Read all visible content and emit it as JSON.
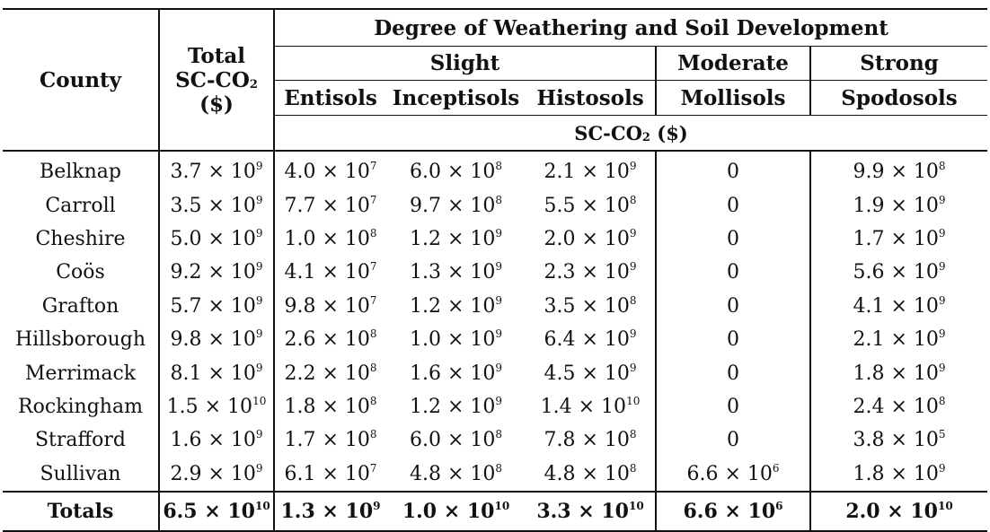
{
  "header": {
    "county": "County",
    "total_line1": "Total",
    "total_line2_main": "SC-CO",
    "total_line2_sub": "2",
    "total_line3": "($)",
    "group_title": "Degree of Weathering and Soil Development",
    "groups": [
      "Slight",
      "Moderate",
      "Strong"
    ],
    "orders": [
      "Entisols",
      "Inceptisols",
      "Histosols",
      "Mollisols",
      "Spodosols"
    ],
    "unit_main": "SC-CO",
    "unit_sub": "2",
    "unit_suffix": " ($)"
  },
  "rows": [
    {
      "county": "Belknap",
      "values": [
        [
          "3.7",
          "9"
        ],
        [
          "4.0",
          "7"
        ],
        [
          "6.0",
          "8"
        ],
        [
          "2.1",
          "9"
        ],
        [
          "0",
          ""
        ],
        [
          "9.9",
          "8"
        ]
      ]
    },
    {
      "county": "Carroll",
      "values": [
        [
          "3.5",
          "9"
        ],
        [
          "7.7",
          "7"
        ],
        [
          "9.7",
          "8"
        ],
        [
          "5.5",
          "8"
        ],
        [
          "0",
          ""
        ],
        [
          "1.9",
          "9"
        ]
      ]
    },
    {
      "county": "Cheshire",
      "values": [
        [
          "5.0",
          "9"
        ],
        [
          "1.0",
          "8"
        ],
        [
          "1.2",
          "9"
        ],
        [
          "2.0",
          "9"
        ],
        [
          "0",
          ""
        ],
        [
          "1.7",
          "9"
        ]
      ]
    },
    {
      "county": "Coös",
      "values": [
        [
          "9.2",
          "9"
        ],
        [
          "4.1",
          "7"
        ],
        [
          "1.3",
          "9"
        ],
        [
          "2.3",
          "9"
        ],
        [
          "0",
          ""
        ],
        [
          "5.6",
          "9"
        ]
      ]
    },
    {
      "county": "Grafton",
      "values": [
        [
          "5.7",
          "9"
        ],
        [
          "9.8",
          "7"
        ],
        [
          "1.2",
          "9"
        ],
        [
          "3.5",
          "8"
        ],
        [
          "0",
          ""
        ],
        [
          "4.1",
          "9"
        ]
      ]
    },
    {
      "county": "Hillsborough",
      "values": [
        [
          "9.8",
          "9"
        ],
        [
          "2.6",
          "8"
        ],
        [
          "1.0",
          "9"
        ],
        [
          "6.4",
          "9"
        ],
        [
          "0",
          ""
        ],
        [
          "2.1",
          "9"
        ]
      ]
    },
    {
      "county": "Merrimack",
      "values": [
        [
          "8.1",
          "9"
        ],
        [
          "2.2",
          "8"
        ],
        [
          "1.6",
          "9"
        ],
        [
          "4.5",
          "9"
        ],
        [
          "0",
          ""
        ],
        [
          "1.8",
          "9"
        ]
      ]
    },
    {
      "county": "Rockingham",
      "values": [
        [
          "1.5",
          "10"
        ],
        [
          "1.8",
          "8"
        ],
        [
          "1.2",
          "9"
        ],
        [
          "1.4",
          "10"
        ],
        [
          "0",
          ""
        ],
        [
          "2.4",
          "8"
        ]
      ]
    },
    {
      "county": "Strafford",
      "values": [
        [
          "1.6",
          "9"
        ],
        [
          "1.7",
          "8"
        ],
        [
          "6.0",
          "8"
        ],
        [
          "7.8",
          "8"
        ],
        [
          "0",
          ""
        ],
        [
          "3.8",
          "5"
        ]
      ]
    },
    {
      "county": "Sullivan",
      "values": [
        [
          "2.9",
          "9"
        ],
        [
          "6.1",
          "7"
        ],
        [
          "4.8",
          "8"
        ],
        [
          "4.8",
          "8"
        ],
        [
          "6.6",
          "6"
        ],
        [
          "1.8",
          "9"
        ]
      ]
    }
  ],
  "totals": {
    "label": "Totals",
    "values": [
      [
        "6.5",
        "10"
      ],
      [
        "1.3",
        "9"
      ],
      [
        "1.0",
        "10"
      ],
      [
        "3.3",
        "10"
      ],
      [
        "6.6",
        "6"
      ],
      [
        "2.0",
        "10"
      ]
    ]
  }
}
